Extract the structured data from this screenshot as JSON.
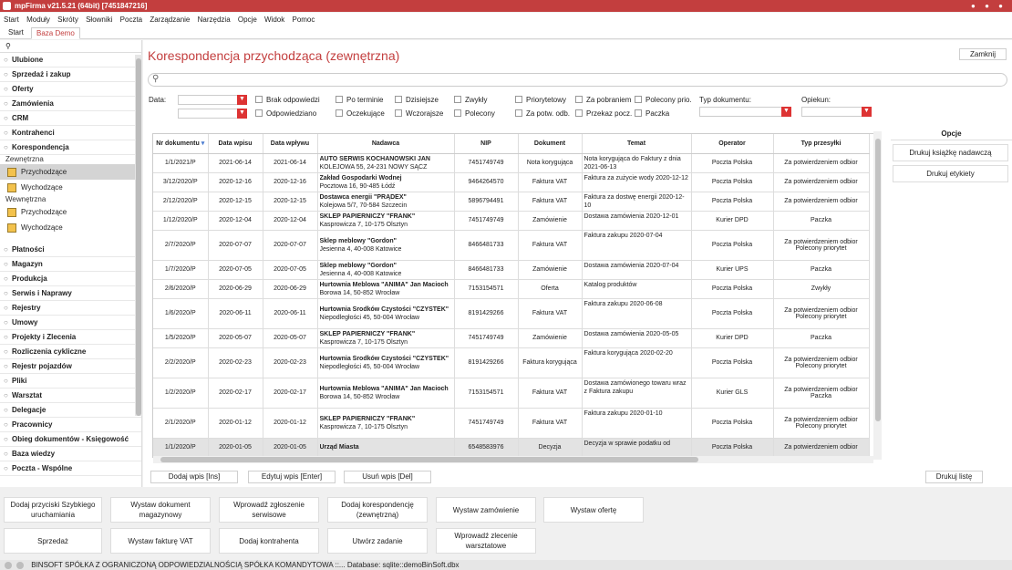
{
  "app": {
    "title": "mpFirma v21.5.21 (64bit) [7451847216]"
  },
  "menu": [
    "Start",
    "Moduły",
    "Skróty",
    "Słowniki",
    "Poczta",
    "Zarządzanie",
    "Narzędzia",
    "Opcje",
    "Widok",
    "Pomoc"
  ],
  "tabs": [
    "Start",
    "Baza Demo"
  ],
  "sidebar": {
    "sections_top": [
      "Ulubione",
      "Sprzedaż i zakup",
      "Oferty",
      "Zamówienia",
      "CRM",
      "Kontrahenci",
      "Korespondencja"
    ],
    "group1": "Zewnętrzna",
    "group1_items": [
      "Przychodzące",
      "Wychodzące"
    ],
    "group2": "Wewnętrzna",
    "group2_items": [
      "Przychodzące",
      "Wychodzące"
    ],
    "sections_bottom": [
      "Płatności",
      "Magazyn",
      "Produkcja",
      "Serwis i Naprawy",
      "Rejestry",
      "Umowy",
      "Projekty i Zlecenia",
      "Rozliczenia cykliczne",
      "Rejestr pojazdów",
      "Pliki",
      "Warsztat",
      "Delegacje",
      "Pracownicy",
      "Obieg dokumentów - Księgowość",
      "Baza wiedzy",
      "Poczta - Wspólne"
    ]
  },
  "main": {
    "title": "Korespondencja przychodząca (zewnętrzna)",
    "close_label": "Zamknij",
    "filters": {
      "data_label": "Data:",
      "checks_row1": [
        "Brak odpowiedzi",
        "Po terminie",
        "Dzisiejsze",
        "Zwykły",
        "Priorytetowy",
        "Za pobraniem",
        "Polecony prio."
      ],
      "checks_row2": [
        "Odpowiedziano",
        "Oczekujące",
        "Wczorajsze",
        "Polecony",
        "Za potw. odb.",
        "Przekaz pocz.",
        "Paczka"
      ],
      "typ_label": "Typ dokumentu:",
      "opiekun_label": "Opiekun:"
    },
    "columns": [
      "Nr dokumentu",
      "Data wpisu",
      "Data wpływu",
      "Nadawca",
      "NIP",
      "Dokument",
      "Temat",
      "Operator",
      "Typ przesyłki"
    ],
    "rows": [
      {
        "nr": "1/1/2021/P",
        "wpis": "2021-06-14",
        "wplyw": "2021-06-14",
        "nadawca": "AUTO SERWIS KOCHANOWSKI JAN",
        "adres": "KOLEJOWA 55, 24-231 NOWY SĄCZ",
        "nip": "7451749749",
        "dok": "Nota korygująca",
        "temat": "Nota korygująca do Faktury z dnia 2021-06-13",
        "op": "Poczta Polska",
        "typ": "Za potwierdzeniem odbior",
        "typ2": ""
      },
      {
        "nr": "3/12/2020/P",
        "wpis": "2020-12-16",
        "wplyw": "2020-12-16",
        "nadawca": "Zakład Gospodarki Wodnej",
        "adres": "Pocztowa 16, 90-485 Łódź",
        "nip": "9464264570",
        "dok": "Faktura VAT",
        "temat": "Faktura za zużycie wody 2020-12-12",
        "op": "Poczta Polska",
        "typ": "Za potwierdzeniem odbior",
        "typ2": ""
      },
      {
        "nr": "2/12/2020/P",
        "wpis": "2020-12-15",
        "wplyw": "2020-12-15",
        "nadawca": "Dostawca energii \"PRĄDEX\"",
        "adres": "Kolejowa 5/7, 70-584 Szczecin",
        "nip": "5896794491",
        "dok": "Faktura VAT",
        "temat": "Faktura za dostwę energii 2020-12-10",
        "op": "Poczta Polska",
        "typ": "Za potwierdzeniem odbior",
        "typ2": ""
      },
      {
        "nr": "1/12/2020/P",
        "wpis": "2020-12-04",
        "wplyw": "2020-12-04",
        "nadawca": "SKLEP PAPIERNICZY \"FRANK\"",
        "adres": "Kasprowicza 7, 10-175 Olsztyn",
        "nip": "7451749749",
        "dok": "Zamówienie",
        "temat": "Dostawa zamówienia 2020-12-01",
        "op": "Kurier DPD",
        "typ": "Paczka",
        "typ2": ""
      },
      {
        "nr": "2/7/2020/P",
        "wpis": "2020-07-07",
        "wplyw": "2020-07-07",
        "nadawca": "Sklep meblowy \"Gordon\"",
        "adres": "Jesienna 4, 40-008 Katowice",
        "nip": "8466481733",
        "dok": "Faktura VAT",
        "temat": "Faktura zakupu 2020-07-04",
        "op": "Poczta Polska",
        "typ": "Za potwierdzeniem odbior",
        "typ2": "Polecony priorytet"
      },
      {
        "nr": "1/7/2020/P",
        "wpis": "2020-07-05",
        "wplyw": "2020-07-05",
        "nadawca": "Sklep meblowy \"Gordon\"",
        "adres": "Jesienna 4, 40-008 Katowice",
        "nip": "8466481733",
        "dok": "Zamówienie",
        "temat": "Dostawa zamówienia 2020-07-04",
        "op": "Kurier UPS",
        "typ": "Paczka",
        "typ2": ""
      },
      {
        "nr": "2/6/2020/P",
        "wpis": "2020-06-29",
        "wplyw": "2020-06-29",
        "nadawca": "Hurtownia Meblowa \"ANIMA\" Jan Macioch",
        "adres": "Borowa 14, 50-852 Wrocław",
        "nip": "7153154571",
        "dok": "Oferta",
        "temat": "Katalog produktów",
        "op": "Poczta Polska",
        "typ": "Zwykły",
        "typ2": ""
      },
      {
        "nr": "1/6/2020/P",
        "wpis": "2020-06-11",
        "wplyw": "2020-06-11",
        "nadawca": "Hurtownia Środków Czystości \"CZYSTEK\"",
        "adres": "Niepodległości 45, 50-004 Wrocław",
        "nip": "8191429266",
        "dok": "Faktura VAT",
        "temat": "Faktura zakupu 2020-06-08",
        "op": "Poczta Polska",
        "typ": "Za potwierdzeniem odbior",
        "typ2": "Polecony priorytet"
      },
      {
        "nr": "1/5/2020/P",
        "wpis": "2020-05-07",
        "wplyw": "2020-05-07",
        "nadawca": "SKLEP PAPIERNICZY \"FRANK\"",
        "adres": "Kasprowicza 7, 10-175 Olsztyn",
        "nip": "7451749749",
        "dok": "Zamówienie",
        "temat": "Dostawa zamówienia 2020-05-05",
        "op": "Kurier DPD",
        "typ": "Paczka",
        "typ2": ""
      },
      {
        "nr": "2/2/2020/P",
        "wpis": "2020-02-23",
        "wplyw": "2020-02-23",
        "nadawca": "Hurtownia Środków Czystości \"CZYSTEK\"",
        "adres": "Niepodległości 45, 50-004 Wrocław",
        "nip": "8191429266",
        "dok": "Faktura korygująca",
        "temat": "Faktura korygująca 2020-02-20",
        "op": "Poczta Polska",
        "typ": "Za potwierdzeniem odbior",
        "typ2": "Polecony priorytet"
      },
      {
        "nr": "1/2/2020/P",
        "wpis": "2020-02-17",
        "wplyw": "2020-02-17",
        "nadawca": "Hurtownia Meblowa \"ANIMA\" Jan Macioch",
        "adres": "Borowa 14, 50-852 Wrocław",
        "nip": "7153154571",
        "dok": "Faktura VAT",
        "temat": "Dostawa zamówionego towaru wraz z Faktura zakupu",
        "op": "Kurier GLS",
        "typ": "Za potwierdzeniem odbior",
        "typ2": "Paczka"
      },
      {
        "nr": "2/1/2020/P",
        "wpis": "2020-01-12",
        "wplyw": "2020-01-12",
        "nadawca": "SKLEP PAPIERNICZY \"FRANK\"",
        "adres": "Kasprowicza 7, 10-175 Olsztyn",
        "nip": "7451749749",
        "dok": "Faktura VAT",
        "temat": "Faktura zakupu 2020-01-10",
        "op": "Poczta Polska",
        "typ": "Za potwierdzeniem odbior",
        "typ2": "Polecony priorytet"
      },
      {
        "nr": "1/1/2020/P",
        "wpis": "2020-01-05",
        "wplyw": "2020-01-05",
        "nadawca": "Urząd Miasta",
        "adres": "",
        "nip": "6548583976",
        "dok": "Decyzja",
        "temat": "Decyzja w sprawie podatku od",
        "op": "Poczta Polska",
        "typ": "Za potwierdzeniem odbior",
        "typ2": ""
      }
    ],
    "actions": [
      "Dodaj wpis [Ins]",
      "Edytuj wpis [Enter]",
      "Usuń wpis [Del]"
    ],
    "print_list": "Drukuj listę"
  },
  "opcje": {
    "title": "Opcje",
    "buttons": [
      "Drukuj książkę nadawczą",
      "Drukuj etykiety"
    ]
  },
  "quick": {
    "row1": [
      "Dodaj przyciski Szybkiego uruchamiania",
      "Wystaw dokument magazynowy",
      "Wprowadź zgłoszenie serwisowe",
      "Dodaj korespondencję (zewnętrzną)",
      "Wystaw zamówienie",
      "Wystaw ofertę"
    ],
    "row2": [
      "Sprzedaż",
      "Wystaw fakturę VAT",
      "Dodaj kontrahenta",
      "Utwórz zadanie",
      "Wprowadź zlecenie warsztatowe"
    ]
  },
  "status": "BINSOFT SPÓŁKA Z OGRANICZONĄ ODPOWIEDZIALNOŚCIĄ SPÓŁKA KOMANDYTOWA ::... Database: sqlite::demoBinSoft.dbx",
  "colors": {
    "accent": "#c33e3e",
    "dropdown": "#dd3333"
  }
}
